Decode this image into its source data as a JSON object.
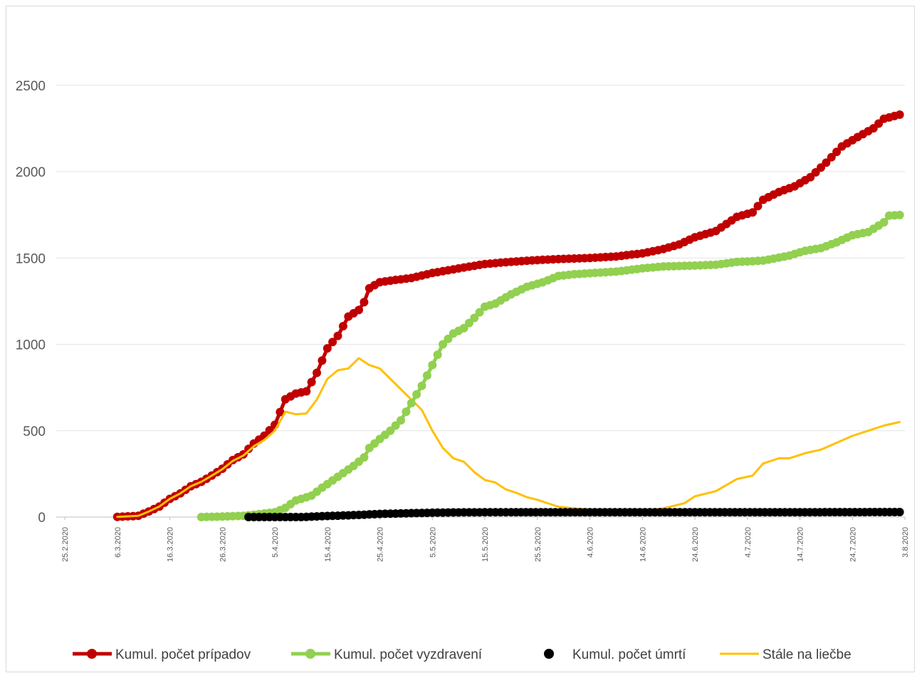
{
  "chart_data": {
    "type": "line",
    "title": "",
    "xlabel": "",
    "ylabel": "",
    "ylim": [
      0,
      2800
    ],
    "yticks": [
      0,
      500,
      1000,
      1500,
      2000,
      2500
    ],
    "x_range": [
      "25.2.2020",
      "3.8.2020"
    ],
    "xtick_labels": [
      "25.2.2020",
      "6.3.2020",
      "16.3.2020",
      "26.3.2020",
      "5.4.2020",
      "15.4.2020",
      "25.4.2020",
      "5.5.2020",
      "15.5.2020",
      "25.5.2020",
      "4.6.2020",
      "14.6.2020",
      "24.6.2020",
      "4.7.2020",
      "14.7.2020",
      "24.7.2020",
      "3.8.2020"
    ],
    "grid": "horizontal",
    "legend": "bottom",
    "series": [
      {
        "name": "Kumul. počet prípadov",
        "color": "#c00000",
        "marker": "circle",
        "line": true,
        "points": [
          [
            "6.3.2020",
            1
          ],
          [
            "10.3.2020",
            7
          ],
          [
            "12.3.2020",
            32
          ],
          [
            "14.3.2020",
            61
          ],
          [
            "16.3.2020",
            105
          ],
          [
            "18.3.2020",
            137
          ],
          [
            "20.3.2020",
            178
          ],
          [
            "22.3.2020",
            204
          ],
          [
            "24.3.2020",
            240
          ],
          [
            "26.3.2020",
            280
          ],
          [
            "28.3.2020",
            330
          ],
          [
            "30.3.2020",
            363
          ],
          [
            "1.4.2020",
            426
          ],
          [
            "3.4.2020",
            471
          ],
          [
            "5.4.2020",
            534
          ],
          [
            "7.4.2020",
            682
          ],
          [
            "9.4.2020",
            715
          ],
          [
            "11.4.2020",
            728
          ],
          [
            "13.4.2020",
            835
          ],
          [
            "15.4.2020",
            977
          ],
          [
            "17.4.2020",
            1049
          ],
          [
            "19.4.2020",
            1161
          ],
          [
            "21.4.2020",
            1199
          ],
          [
            "22.4.2020",
            1244
          ],
          [
            "23.4.2020",
            1325
          ],
          [
            "25.4.2020",
            1360
          ],
          [
            "28.4.2020",
            1373
          ],
          [
            "1.5.2020",
            1384
          ],
          [
            "5.5.2020",
            1413
          ],
          [
            "8.5.2020",
            1429
          ],
          [
            "11.5.2020",
            1445
          ],
          [
            "15.5.2020",
            1465
          ],
          [
            "20.5.2020",
            1478
          ],
          [
            "25.5.2020",
            1488
          ],
          [
            "30.5.2020",
            1495
          ],
          [
            "4.6.2020",
            1500
          ],
          [
            "9.6.2020",
            1509
          ],
          [
            "14.6.2020",
            1527
          ],
          [
            "18.6.2020",
            1552
          ],
          [
            "21.6.2020",
            1578
          ],
          [
            "24.6.2020",
            1620
          ],
          [
            "28.6.2020",
            1656
          ],
          [
            "2.7.2020",
            1738
          ],
          [
            "5.7.2020",
            1764
          ],
          [
            "7.7.2020",
            1837
          ],
          [
            "10.7.2020",
            1882
          ],
          [
            "13.7.2020",
            1915
          ],
          [
            "16.7.2020",
            1968
          ],
          [
            "19.7.2020",
            2052
          ],
          [
            "22.7.2020",
            2146
          ],
          [
            "25.7.2020",
            2200
          ],
          [
            "28.7.2020",
            2251
          ],
          [
            "30.7.2020",
            2306
          ],
          [
            "2.8.2020",
            2330
          ]
        ]
      },
      {
        "name": "Kumul. počet vyzdravení",
        "color": "#92d050",
        "marker": "circle",
        "line": true,
        "points": [
          [
            "22.3.2020",
            0
          ],
          [
            "26.3.2020",
            3
          ],
          [
            "30.3.2020",
            7
          ],
          [
            "2.4.2020",
            17
          ],
          [
            "5.4.2020",
            28
          ],
          [
            "7.4.2020",
            53
          ],
          [
            "9.4.2020",
            96
          ],
          [
            "12.4.2020",
            124
          ],
          [
            "14.4.2020",
            170
          ],
          [
            "16.4.2020",
            212
          ],
          [
            "18.4.2020",
            254
          ],
          [
            "20.4.2020",
            296
          ],
          [
            "22.4.2020",
            345
          ],
          [
            "23.4.2020",
            400
          ],
          [
            "25.4.2020",
            452
          ],
          [
            "27.4.2020",
            500
          ],
          [
            "29.4.2020",
            560
          ],
          [
            "1.5.2020",
            660
          ],
          [
            "3.5.2020",
            760
          ],
          [
            "5.5.2020",
            880
          ],
          [
            "7.5.2020",
            1000
          ],
          [
            "9.5.2020",
            1063
          ],
          [
            "11.5.2020",
            1094
          ],
          [
            "13.5.2020",
            1153
          ],
          [
            "15.5.2020",
            1218
          ],
          [
            "17.5.2020",
            1236
          ],
          [
            "20.5.2020",
            1290
          ],
          [
            "23.5.2020",
            1333
          ],
          [
            "26.5.2020",
            1359
          ],
          [
            "29.5.2020",
            1396
          ],
          [
            "1.6.2020",
            1406
          ],
          [
            "5.6.2020",
            1414
          ],
          [
            "9.6.2020",
            1421
          ],
          [
            "14.6.2020",
            1440
          ],
          [
            "18.6.2020",
            1451
          ],
          [
            "24.6.2020",
            1456
          ],
          [
            "28.6.2020",
            1461
          ],
          [
            "2.7.2020",
            1477
          ],
          [
            "7.7.2020",
            1485
          ],
          [
            "12.7.2020",
            1514
          ],
          [
            "15.7.2020",
            1542
          ],
          [
            "18.7.2020",
            1557
          ],
          [
            "21.7.2020",
            1591
          ],
          [
            "24.7.2020",
            1632
          ],
          [
            "27.7.2020",
            1650
          ],
          [
            "30.7.2020",
            1707
          ],
          [
            "31.7.2020",
            1745
          ],
          [
            "2.8.2020",
            1749
          ]
        ]
      },
      {
        "name": "Kumul. počet úmrtí",
        "color": "#000000",
        "marker": "circle",
        "line": false,
        "points": [
          [
            "31.3.2020",
            0
          ],
          [
            "10.4.2020",
            0
          ],
          [
            "15.4.2020",
            6
          ],
          [
            "20.4.2020",
            11
          ],
          [
            "25.4.2020",
            18
          ],
          [
            "30.4.2020",
            22
          ],
          [
            "5.5.2020",
            25
          ],
          [
            "10.5.2020",
            27
          ],
          [
            "20.5.2020",
            28
          ],
          [
            "4.6.2020",
            28
          ],
          [
            "24.6.2020",
            28
          ],
          [
            "14.7.2020",
            28
          ],
          [
            "2.8.2020",
            29
          ]
        ]
      },
      {
        "name": "Stále na liečbe",
        "color": "#ffc000",
        "marker": "none",
        "line": true,
        "points": [
          [
            "6.3.2020",
            1
          ],
          [
            "10.3.2020",
            7
          ],
          [
            "12.3.2020",
            32
          ],
          [
            "14.3.2020",
            61
          ],
          [
            "16.3.2020",
            105
          ],
          [
            "18.3.2020",
            137
          ],
          [
            "20.3.2020",
            178
          ],
          [
            "22.3.2020",
            204
          ],
          [
            "24.3.2020",
            240
          ],
          [
            "26.3.2020",
            277
          ],
          [
            "28.3.2020",
            325
          ],
          [
            "30.3.2020",
            356
          ],
          [
            "1.4.2020",
            410
          ],
          [
            "3.4.2020",
            446
          ],
          [
            "5.4.2020",
            500
          ],
          [
            "7.4.2020",
            610
          ],
          [
            "9.4.2020",
            595
          ],
          [
            "11.4.2020",
            600
          ],
          [
            "13.4.2020",
            680
          ],
          [
            "15.4.2020",
            800
          ],
          [
            "17.4.2020",
            850
          ],
          [
            "19.4.2020",
            860
          ],
          [
            "21.4.2020",
            920
          ],
          [
            "23.4.2020",
            880
          ],
          [
            "25.4.2020",
            860
          ],
          [
            "27.4.2020",
            800
          ],
          [
            "29.4.2020",
            740
          ],
          [
            "1.5.2020",
            680
          ],
          [
            "3.5.2020",
            620
          ],
          [
            "5.5.2020",
            500
          ],
          [
            "7.5.2020",
            400
          ],
          [
            "9.5.2020",
            340
          ],
          [
            "11.5.2020",
            320
          ],
          [
            "13.5.2020",
            260
          ],
          [
            "15.5.2020",
            215
          ],
          [
            "17.5.2020",
            200
          ],
          [
            "19.5.2020",
            160
          ],
          [
            "21.5.2020",
            140
          ],
          [
            "23.5.2020",
            115
          ],
          [
            "25.5.2020",
            100
          ],
          [
            "29.5.2020",
            60
          ],
          [
            "1.6.2020",
            50
          ],
          [
            "5.6.2020",
            40
          ],
          [
            "14.6.2020",
            35
          ],
          [
            "18.6.2020",
            50
          ],
          [
            "22.6.2020",
            80
          ],
          [
            "24.6.2020",
            120
          ],
          [
            "28.6.2020",
            150
          ],
          [
            "2.7.2020",
            220
          ],
          [
            "5.7.2020",
            240
          ],
          [
            "7.7.2020",
            310
          ],
          [
            "10.7.2020",
            340
          ],
          [
            "12.7.2020",
            340
          ],
          [
            "15.7.2020",
            370
          ],
          [
            "18.7.2020",
            390
          ],
          [
            "21.7.2020",
            430
          ],
          [
            "24.7.2020",
            470
          ],
          [
            "27.7.2020",
            500
          ],
          [
            "30.7.2020",
            530
          ],
          [
            "2.8.2020",
            550
          ]
        ]
      }
    ]
  }
}
